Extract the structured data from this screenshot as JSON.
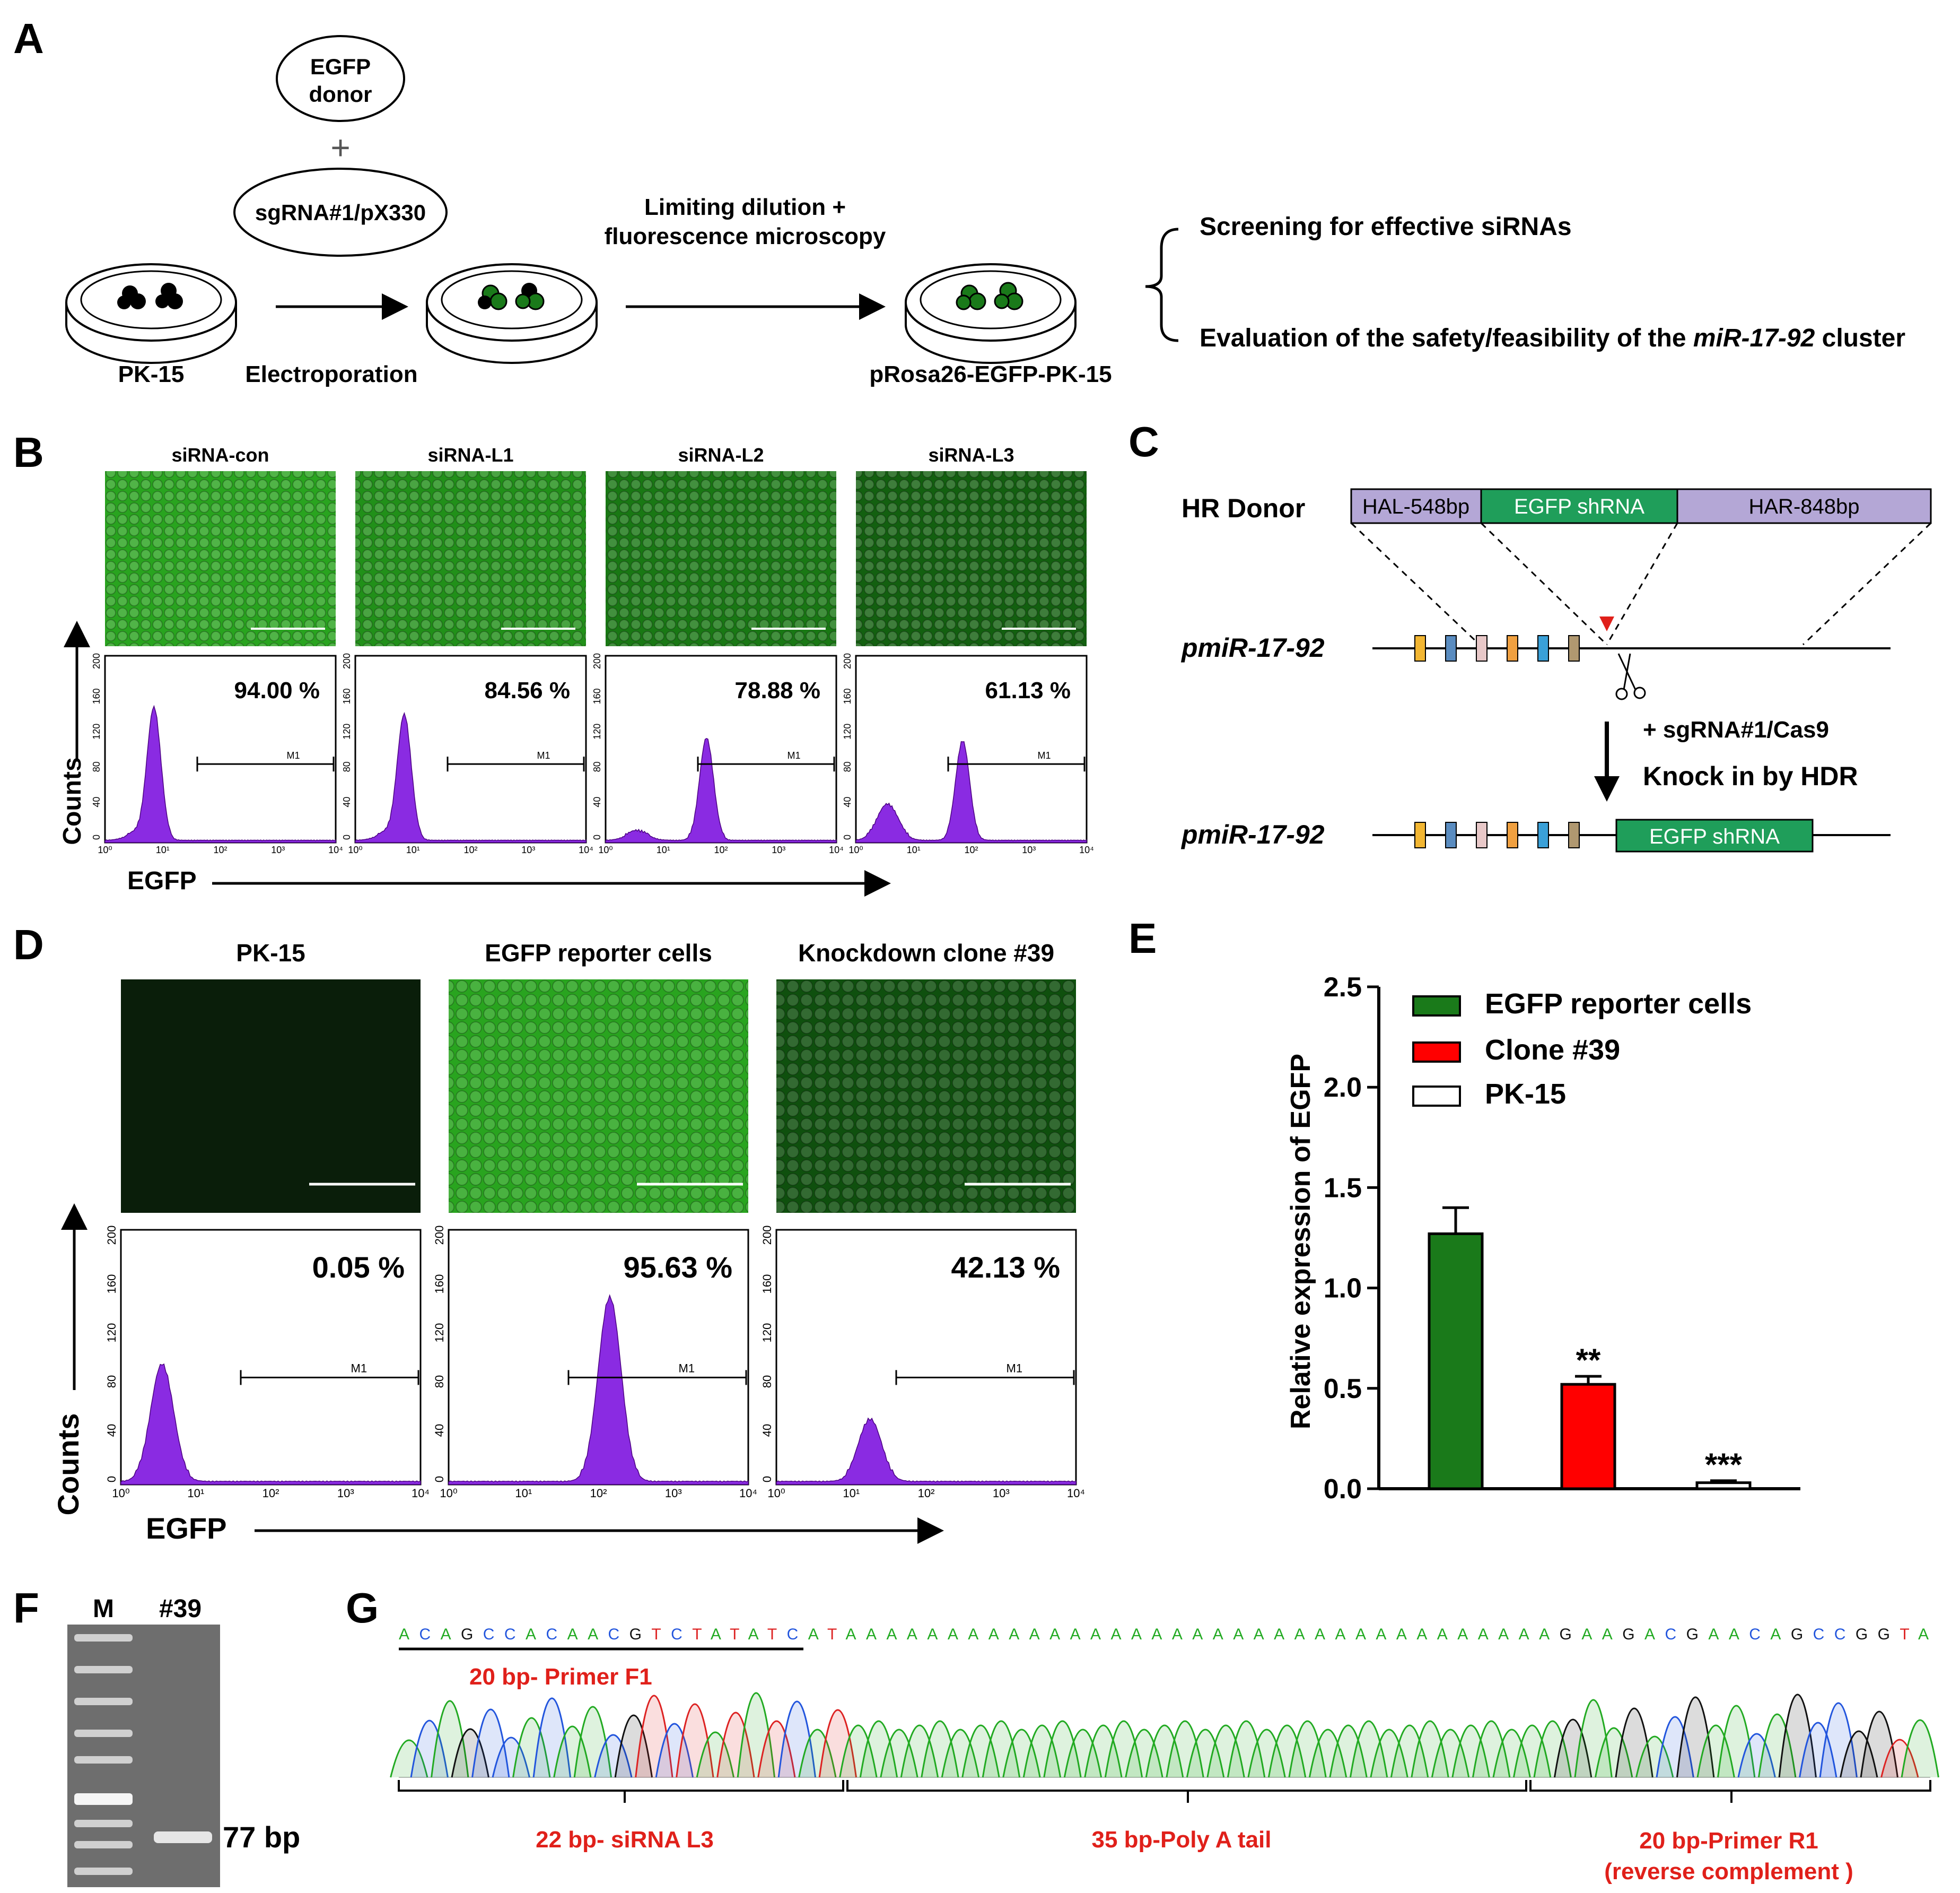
{
  "panel_letters": {
    "a": "A",
    "b": "B",
    "c": "C",
    "d": "D",
    "e": "E",
    "f": "F",
    "g": "G"
  },
  "panel_a": {
    "donor_line1": "EGFP",
    "donor_line2": "donor",
    "plus": "+",
    "sgrna": "sgRNA#1/pX330",
    "cells_start": "PK-15",
    "electroporation": "Electroporation",
    "limiting_line1": "Limiting dilution +",
    "limiting_line2": "fluorescence microscopy",
    "cells_end": "pRosa26-EGFP-PK-15",
    "screening": "Screening for effective siRNAs",
    "evaluation_pre": "Evaluation of the safety/feasibility of the ",
    "evaluation_italic": "miR-17-92",
    "evaluation_post": " cluster"
  },
  "panel_b": {
    "titles": [
      "siRNA-con",
      "siRNA-L1",
      "siRNA-L2",
      "siRNA-L3"
    ],
    "percentages": [
      "94.00 %",
      "84.56 %",
      "78.88 %",
      "61.13 %"
    ],
    "y_axis": "Counts",
    "x_axis": "EGFP",
    "gate_label": "M1",
    "y_ticks": [
      "200",
      "160",
      "120",
      "80",
      "40",
      "0"
    ],
    "x_ticks": [
      "10⁰",
      "10¹",
      "10²",
      "10³",
      "10⁴"
    ],
    "brightness": [
      0.72,
      0.62,
      0.5,
      0.38
    ],
    "peak_log": [
      0.85,
      0.85,
      1.75,
      1.85
    ],
    "peak_counts": [
      148,
      140,
      115,
      112
    ],
    "low_peak_counts": [
      8,
      8,
      10,
      40
    ]
  },
  "panel_c": {
    "hr_donor": "HR Donor",
    "hal": "HAL-548bp",
    "egfp_shrna": "EGFP shRNA",
    "har": "HAR-848bp",
    "locus": "pmiR-17-92",
    "sgrna_cas9": "+ sgRNA#1/Cas9",
    "knock_in": "Knock in by HDR",
    "inserted": "EGFP shRNA",
    "exon_colors": [
      "#f2b632",
      "#5a8cc0",
      "#e8c8c8",
      "#f0a040",
      "#3aa0d8",
      "#b09870"
    ]
  },
  "panel_d": {
    "titles": [
      "PK-15",
      "EGFP  reporter  cells",
      "Knockdown clone #39"
    ],
    "percentages": [
      "0.05 %",
      "95.63 %",
      "42.13 %"
    ],
    "y_axis": "Counts",
    "x_axis": "EGFP",
    "gate_label": "M1",
    "y_ticks": [
      "200",
      "160",
      "120",
      "80",
      "40",
      "0"
    ],
    "x_ticks": [
      "10⁰",
      "10¹",
      "10²",
      "10³",
      "10⁴"
    ],
    "brightness": [
      0.05,
      0.72,
      0.3
    ],
    "peak_log": [
      0.55,
      2.15,
      1.25
    ],
    "peak_counts": [
      95,
      150,
      50
    ]
  },
  "chart_data": {
    "type": "bar",
    "categories": [
      "EGFP reporter cells",
      "Clone #39",
      "PK-15"
    ],
    "values": [
      1.27,
      0.52,
      0.03
    ],
    "errors": [
      0.13,
      0.04,
      0.01
    ],
    "significance": [
      "",
      "**",
      "***"
    ],
    "colors": [
      "#1a7a1a",
      "#ff0000",
      "#ffffff"
    ],
    "ylabel": "Relative expression of EGFP",
    "xlabel": "",
    "ylim": [
      0,
      2.5
    ],
    "y_ticks": [
      "0.0",
      "0.5",
      "1.0",
      "1.5",
      "2.0",
      "2.5"
    ],
    "legend": [
      "EGFP reporter cells",
      "Clone #39",
      "PK-15"
    ],
    "legend_position": "top-right"
  },
  "panel_f": {
    "lane_marker": "M",
    "lane_sample": "#39",
    "band_size": "77 bp"
  },
  "panel_g": {
    "sequence": "ACAGCCACAACGTCTATATCATAAAAAAAAAAAAAAAAAAAAAAAAAAAAAAAAAAAGAAGACGAACAGCCGGTA",
    "primer_f1": "20 bp- Primer F1",
    "sirna": "22 bp- siRNA L3",
    "polya": "35 bp-Poly A tail",
    "primer_r1_line1": "20 bp-Primer  R1",
    "primer_r1_line2": "(reverse complement )"
  }
}
